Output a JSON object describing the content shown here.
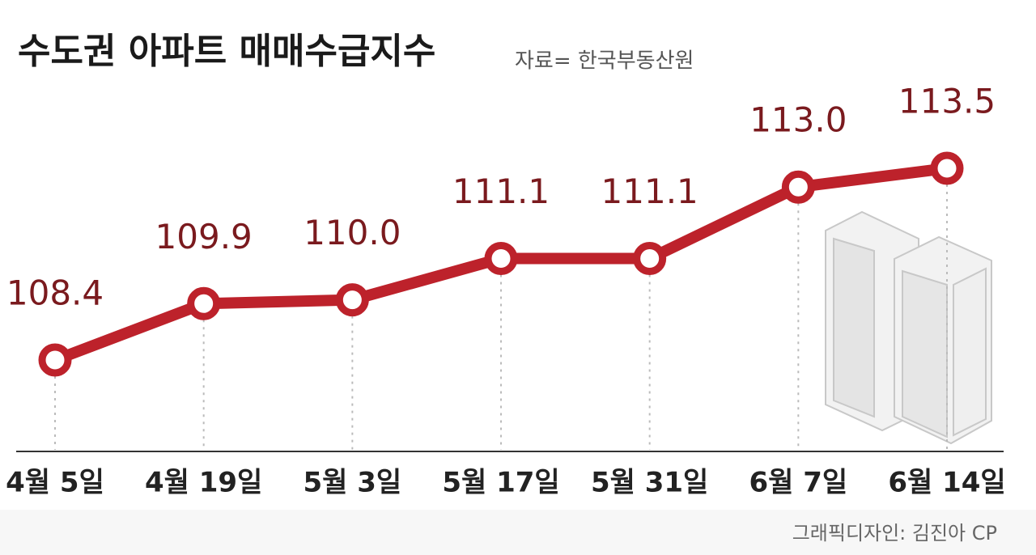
{
  "chart_data": {
    "type": "line",
    "title": "수도권 아파트 매매수급지수",
    "subtitle": "자료= 한국부동산원",
    "credit": "그래픽디자인: 김진아 CP",
    "categories": [
      "4월 5일",
      "4월 19일",
      "5월 3일",
      "5월 17일",
      "5월 31일",
      "6월 7일",
      "6월 14일"
    ],
    "values": [
      108.4,
      109.9,
      110.0,
      111.1,
      111.1,
      113.0,
      113.5
    ],
    "value_labels": [
      "108.4",
      "109.9",
      "110.0",
      "111.1",
      "111.1",
      "113.0",
      "113.5"
    ],
    "color": "#bd222b"
  }
}
